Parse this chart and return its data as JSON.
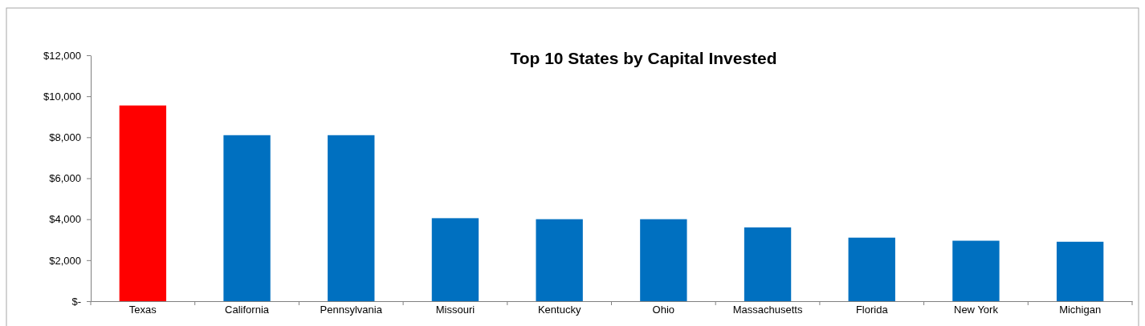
{
  "chart_data": {
    "type": "bar",
    "title": "Top 10 States by Capital Invested",
    "categories": [
      "Texas",
      "California",
      "Pennsylvania",
      "Missouri",
      "Kentucky",
      "Ohio",
      "Massachusetts",
      "Florida",
      "New York",
      "Michigan"
    ],
    "values": [
      9550,
      8100,
      8100,
      4050,
      4000,
      4000,
      3600,
      3100,
      2950,
      2900
    ],
    "colors": [
      "#ff0000",
      "#0070c0",
      "#0070c0",
      "#0070c0",
      "#0070c0",
      "#0070c0",
      "#0070c0",
      "#0070c0",
      "#0070c0",
      "#0070c0"
    ],
    "ylim": [
      0,
      12000
    ],
    "yticks": [
      {
        "value": 0,
        "label": "$-"
      },
      {
        "value": 2000,
        "label": "$2,000"
      },
      {
        "value": 4000,
        "label": "$4,000"
      },
      {
        "value": 6000,
        "label": "$6,000"
      },
      {
        "value": 8000,
        "label": "$8,000"
      },
      {
        "value": 10000,
        "label": "$10,000"
      },
      {
        "value": 12000,
        "label": "$12,000"
      }
    ],
    "grid": false
  }
}
